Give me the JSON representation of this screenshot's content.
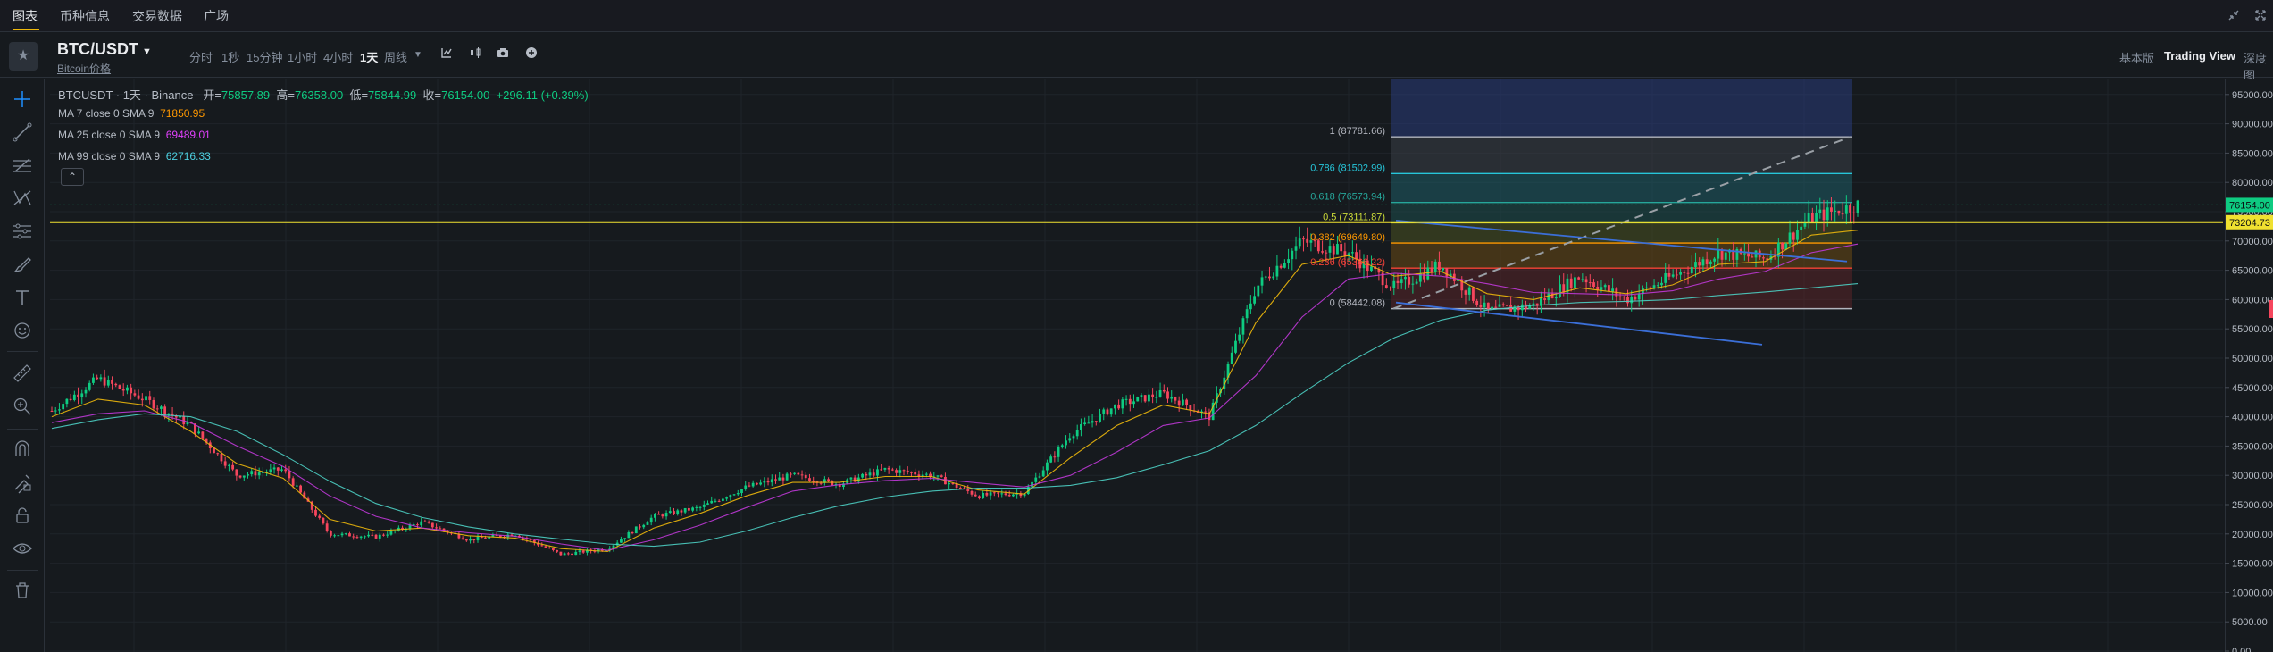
{
  "topnav": {
    "tabs": [
      "图表",
      "币种信息",
      "交易数据",
      "广场"
    ],
    "active_tab": 0,
    "icons": [
      "shrink-icon",
      "expand-icon"
    ]
  },
  "toolbar": {
    "symbol": "BTC/USDT",
    "subname": "Bitcoin价格",
    "timeframes": [
      "分时",
      "1秒",
      "15分钟",
      "1小时",
      "4小时",
      "1天",
      "周线"
    ],
    "active_timeframe": "1天",
    "views": [
      "基本版",
      "Trading View",
      "深度图"
    ],
    "active_view": "Trading View"
  },
  "legend": {
    "title": "BTCUSDT · 1天 · Binance",
    "open_label": "开=",
    "open": "75857.89",
    "high_label": "高=",
    "high": "76358.00",
    "low_label": "低=",
    "low": "75844.99",
    "close_label": "收=",
    "close": "76154.00",
    "change": "+296.11 (+0.39%)",
    "ma7_label": "MA 7 close 0 SMA 9",
    "ma7": "71850.95",
    "ma25_label": "MA 25 close 0 SMA 9",
    "ma25": "69489.01",
    "ma99_label": "MA 99 close 0 SMA 9",
    "ma99": "62716.33"
  },
  "fib_levels": [
    {
      "label": "1 (87781.66)",
      "price": 87781.66,
      "color": "#b2b5be"
    },
    {
      "label": "0.786 (81502.99)",
      "price": 81502.99,
      "color": "#26c6da"
    },
    {
      "label": "0.618 (76573.94)",
      "price": 76573.94,
      "color": "#26a69a"
    },
    {
      "label": "0.5 (73111.87)",
      "price": 73111.87,
      "color": "#cddc39"
    },
    {
      "label": "0.382 (69649.80)",
      "price": 69649.8,
      "color": "#ff9800"
    },
    {
      "label": "0.236 (65366.22)",
      "price": 65366.22,
      "color": "#f44336"
    },
    {
      "label": "0 (58442.08)",
      "price": 58442.08,
      "color": "#b2b5be"
    }
  ],
  "price_axis": {
    "ticks": [
      "95000.00",
      "90000.00",
      "85000.00",
      "80000.00",
      "75000.00",
      "70000.00",
      "65000.00",
      "60000.00",
      "55000.00",
      "50000.00",
      "45000.00",
      "40000.00",
      "35000.00",
      "30000.00",
      "25000.00",
      "20000.00",
      "15000.00",
      "10000.00",
      "5000.00",
      "0.00"
    ],
    "current_price": "76154.00",
    "line_price": "73204.73",
    "range": [
      0,
      97000
    ]
  },
  "colors": {
    "up": "#0ecb81",
    "down": "#f6465d",
    "ma7": "#f0b90b",
    "ma25": "#c039d8",
    "ma99": "#4dd0c4",
    "yellow_line": "#f0e130",
    "trend_line": "#3b6fd8"
  },
  "chart_data": {
    "type": "line",
    "xlabel": "",
    "ylabel": "",
    "ylim": [
      0,
      97000
    ],
    "series": [
      {
        "values": [
          41000,
          46500,
          43000,
          38500,
          30000,
          31000,
          20000,
          19500,
          22000,
          19000,
          20000,
          16500,
          17500,
          23000,
          24500,
          28000,
          30000,
          28500,
          31000,
          30000,
          26500,
          27000,
          37000,
          42000,
          44000,
          40000,
          62000,
          70000,
          68000,
          62000,
          66000,
          58000,
          59000,
          64000,
          60000,
          64000,
          68000,
          67000,
          74000,
          76154
        ]
      },
      {
        "values": [
          40000,
          43000,
          42000,
          37500,
          32000,
          29500,
          22500,
          20500,
          21000,
          19700,
          19300,
          17500,
          17000,
          21000,
          23500,
          26500,
          28800,
          28800,
          29800,
          29800,
          27500,
          26800,
          33000,
          38500,
          42000,
          40500,
          56000,
          66000,
          67500,
          64000,
          64800,
          61000,
          60000,
          62000,
          61000,
          62500,
          66000,
          66500,
          71000,
          71850.95
        ]
      },
      {
        "values": [
          39000,
          40500,
          41000,
          39000,
          35000,
          31500,
          26500,
          23000,
          21000,
          20200,
          19600,
          18300,
          17200,
          19000,
          21500,
          24500,
          27300,
          28400,
          29100,
          29500,
          28700,
          28000,
          30000,
          34000,
          38500,
          39800,
          47000,
          57000,
          63500,
          64500,
          64000,
          62700,
          61200,
          61000,
          60800,
          61500,
          63500,
          64800,
          68000,
          69489.01
        ]
      },
      {
        "values": [
          38000,
          39500,
          40500,
          40000,
          37500,
          33500,
          29000,
          25200,
          22800,
          21200,
          20000,
          19100,
          18300,
          17900,
          18600,
          20500,
          22800,
          24800,
          26300,
          27300,
          27800,
          27800,
          28300,
          29600,
          31800,
          34200,
          38500,
          44000,
          49200,
          53500,
          56500,
          58200,
          59000,
          59500,
          59700,
          60000,
          60700,
          61300,
          62000,
          62716.33
        ]
      }
    ]
  }
}
